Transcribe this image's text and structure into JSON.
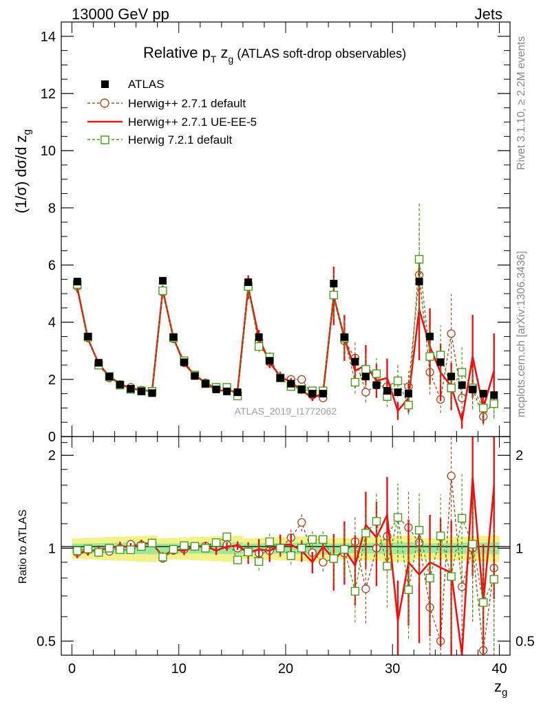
{
  "header": {
    "left": "13000 GeV pp",
    "right": "Jets"
  },
  "side_labels": {
    "rivet": "Rivet 3.1.10, ≥ 2.2M events",
    "mcplots": "mcplots.cern.ch [arXiv:1306.3436]"
  },
  "chart_data": [
    {
      "type": "line",
      "title_main": "Relative p",
      "title_sub_t": "T",
      "title_zg": " z",
      "title_sub_g": "g",
      "title_tail": " (ATLAS soft-drop observables)",
      "watermark": "ATLAS_2019_I1772062",
      "ylabel": "(1/σ) dσ/d z_g",
      "xlabel": "z_g",
      "xlim": [
        -1,
        41
      ],
      "ylim": [
        0,
        14.5
      ],
      "xticks": [
        0,
        10,
        20,
        30,
        40
      ],
      "yticks": [
        0,
        2,
        4,
        6,
        8,
        10,
        12,
        14
      ],
      "legend_position": "top-left",
      "x": [
        0.5,
        1.5,
        2.5,
        3.5,
        4.5,
        5.5,
        6.5,
        7.5,
        8.5,
        9.5,
        10.5,
        11.5,
        12.5,
        13.5,
        14.5,
        15.5,
        16.5,
        17.5,
        18.5,
        19.5,
        20.5,
        21.5,
        22.5,
        23.5,
        24.5,
        25.5,
        26.5,
        27.5,
        28.5,
        29.5,
        30.5,
        31.5,
        32.5,
        33.5,
        34.5,
        35.5,
        36.5,
        37.5,
        38.5,
        39.5
      ],
      "series": [
        {
          "name": "ATLAS",
          "color": "#000000",
          "style": "data",
          "values": [
            5.42,
            3.5,
            2.58,
            2.1,
            1.82,
            1.67,
            1.58,
            1.52,
            5.45,
            3.48,
            2.6,
            2.12,
            1.85,
            1.65,
            1.58,
            1.55,
            5.4,
            3.48,
            2.65,
            2.05,
            1.85,
            1.65,
            1.5,
            1.5,
            5.35,
            3.48,
            2.62,
            2.1,
            1.8,
            1.6,
            1.55,
            1.5,
            5.42,
            3.5,
            2.6,
            2.1,
            1.8,
            1.65,
            1.5,
            1.45
          ]
        },
        {
          "name": "Herwig++ 2.7.1 default",
          "color": "#a0522d",
          "style": "dashed-circle",
          "values": [
            5.25,
            3.45,
            2.5,
            2.05,
            1.82,
            1.72,
            1.62,
            1.58,
            5.05,
            3.42,
            2.58,
            2.15,
            1.88,
            1.72,
            1.62,
            1.55,
            5.25,
            3.35,
            2.6,
            2.05,
            2.0,
            2.0,
            1.45,
            1.35,
            4.95,
            3.35,
            2.75,
            1.55,
            1.8,
            1.75,
            1.95,
            1.75,
            5.65,
            2.25,
            1.3,
            3.6,
            1.35,
            1.65,
            0.7,
            1.25
          ]
        },
        {
          "name": "Herwig++ 2.7.1 UE-EE-5",
          "color": "#ee1111",
          "style": "solid",
          "values": [
            5.2,
            3.42,
            2.55,
            2.1,
            1.85,
            1.68,
            1.63,
            1.58,
            5.12,
            3.45,
            2.55,
            2.15,
            1.88,
            1.62,
            1.6,
            1.58,
            5.22,
            3.45,
            2.6,
            2.1,
            1.9,
            1.62,
            1.35,
            1.52,
            4.92,
            3.45,
            2.3,
            2.5,
            1.95,
            2.05,
            0.9,
            1.35,
            4.45,
            3.15,
            2.25,
            1.75,
            0.55,
            2.8,
            1.0,
            2.3
          ]
        },
        {
          "name": "Herwig 7.2.1 default",
          "color": "#4a9a1e",
          "style": "dashed-square",
          "values": [
            5.32,
            3.48,
            2.5,
            2.1,
            1.8,
            1.65,
            1.6,
            1.58,
            5.1,
            3.45,
            2.65,
            2.15,
            1.85,
            1.72,
            1.72,
            1.42,
            5.25,
            3.15,
            2.78,
            2.05,
            1.75,
            1.65,
            1.6,
            1.6,
            4.95,
            3.45,
            1.9,
            2.35,
            2.2,
            1.4,
            1.95,
            1.1,
            6.2,
            2.8,
            2.85,
            1.7,
            2.25,
            1.7,
            1.0,
            1.15
          ]
        }
      ],
      "ratio": {
        "ylabel": "Ratio to ATLAS",
        "ylim": [
          0.45,
          2.3
        ],
        "scale": "log",
        "yticks": [
          0.5,
          1,
          2
        ],
        "band_colors": [
          "#f2f28a",
          "#9ee89e"
        ]
      }
    }
  ]
}
